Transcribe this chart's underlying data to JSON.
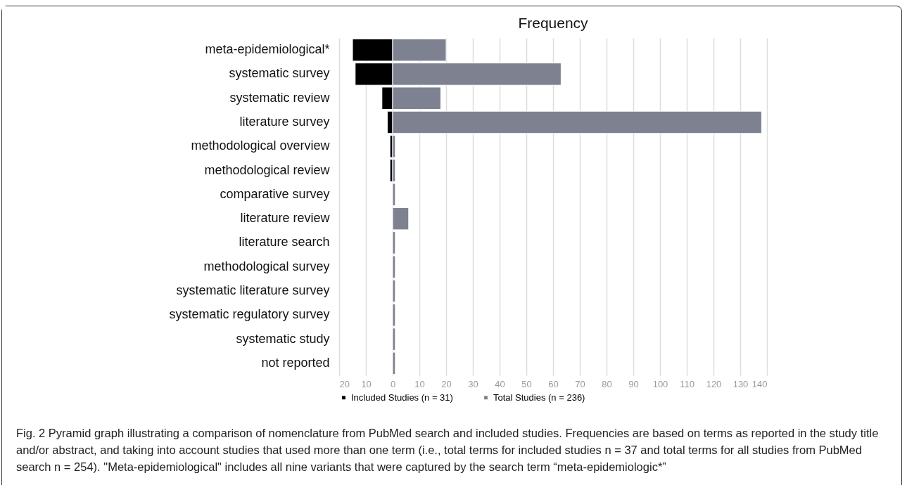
{
  "chart_data": {
    "type": "bar",
    "orientation": "horizontal",
    "title": "Frequency",
    "categories": [
      "meta-epidemiological*",
      "systematic survey",
      "systematic review",
      "literature survey",
      "methodological overview",
      "methodological review",
      "comparative survey",
      "literature review",
      "literature search",
      "methodological survey",
      "systematic literature survey",
      "systematic regulatory survey",
      "systematic study",
      "not reported"
    ],
    "series": [
      {
        "name": "Included Studies (n = 31)",
        "color": "#000000",
        "values": [
          -15,
          -14,
          -4,
          -2,
          -1,
          -1,
          null,
          null,
          null,
          null,
          null,
          null,
          null,
          null
        ]
      },
      {
        "name": "Total Studies (n = 236)",
        "color": "#7d8190",
        "values": [
          20,
          63,
          18,
          138,
          1,
          1,
          1,
          6,
          1,
          1,
          1,
          1,
          1,
          1
        ]
      }
    ],
    "xlim": [
      -20,
      140
    ],
    "xticks": [
      {
        "value": -20,
        "label": "20"
      },
      {
        "value": -10,
        "label": "10"
      },
      0,
      10,
      20,
      30,
      40,
      50,
      60,
      70,
      80,
      90,
      100,
      110,
      120,
      130,
      140
    ],
    "grid": "x",
    "legend": "bottom",
    "annotations": [
      "Fig. 2 Pyramid graph illustrating a comparison of nomenclature from PubMed search and included studies. Frequencies are based on terms as reported in the study title and/or abstract, and taking into account studies that used more than one term (i.e., total terms for included studies n = 37 and total terms for all studies from PubMed search n = 254). \"Meta-epidemiological\" includes all nine variants that were captured by the search term “meta-epidemiologic*”"
    ]
  }
}
